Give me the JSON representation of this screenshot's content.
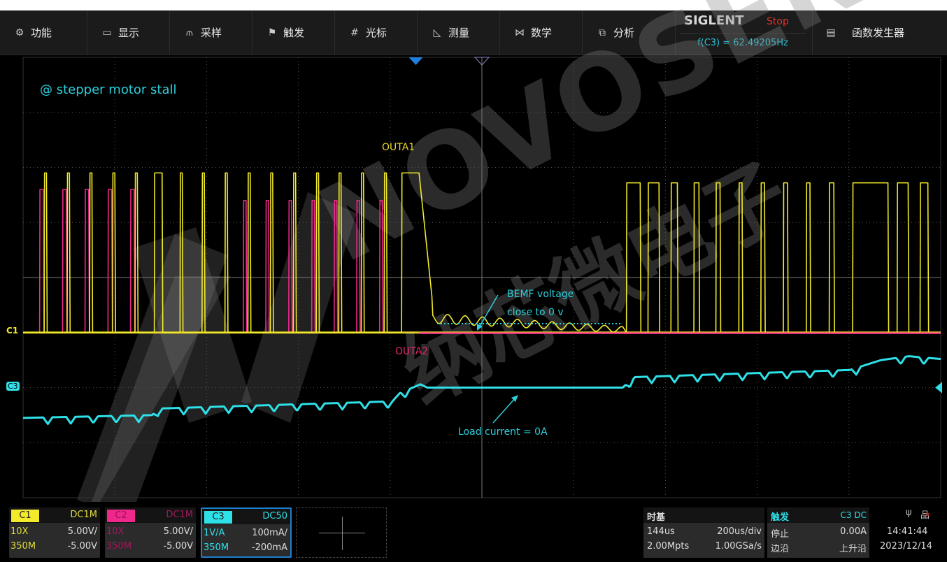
{
  "menu": [
    {
      "icon": "gear-icon",
      "glyph": "⚙",
      "label": "功能"
    },
    {
      "icon": "display-icon",
      "glyph": "▭",
      "label": "显示"
    },
    {
      "icon": "acquire-icon",
      "glyph": "⫙",
      "label": "采样"
    },
    {
      "icon": "flag-icon",
      "glyph": "⚑",
      "label": "触发"
    },
    {
      "icon": "cursor-icon",
      "glyph": "#",
      "label": "光标"
    },
    {
      "icon": "measure-icon",
      "glyph": "◺",
      "label": "测量"
    },
    {
      "icon": "math-icon",
      "glyph": "⋈",
      "label": "数学"
    },
    {
      "icon": "analysis-icon",
      "glyph": "⧉",
      "label": "分析"
    }
  ],
  "brand": {
    "logo": "SIGLENT",
    "run_state": "Stop",
    "frequency": "f(C3) = 62.49205Hz"
  },
  "awg": {
    "icon": "awg-icon",
    "glyph": "▤",
    "label": "函数发生器"
  },
  "colors": {
    "c1": "#f2ea2a",
    "c2": "#f0288c",
    "c3": "#2ee0e8",
    "annotation": "#2bd0dc",
    "grid": "#555555",
    "stop": "#e0302a"
  },
  "annotations": {
    "title": "@ stepper motor stall",
    "outa1": "OUTA1",
    "outa2": "OUTA2",
    "bemf_line1": "BEMF voltage",
    "bemf_line2": "close to 0 v",
    "load": "Load current = 0A"
  },
  "markers": {
    "c1": "C1",
    "c3": "C3"
  },
  "watermark": {
    "text": "NOVOSENSE",
    "cn": "纳芯微电子"
  },
  "channels": [
    {
      "tag": "C1",
      "coupling": "DC1M",
      "probe": "10X",
      "scale": "5.00V/",
      "bw": "350M",
      "offset": "-5.00V"
    },
    {
      "tag": "C2",
      "coupling": "DC1M",
      "probe": "10X",
      "scale": "5.00V/",
      "bw": "350M",
      "offset": "-5.00V"
    },
    {
      "tag": "C3",
      "coupling": "DC50",
      "probe": "1V/A",
      "scale": "100mA/",
      "bw": "350M",
      "offset": "-200mA"
    }
  ],
  "timebase": {
    "title": "时基",
    "delay": "144us",
    "scale": "200us/div",
    "memory": "2.00Mpts",
    "rate": "1.00GSa/s"
  },
  "trigger": {
    "title": "触发",
    "source": "C3 DC",
    "state": "停止",
    "level": "0.00A",
    "type": "边沿",
    "slope": "上升沿"
  },
  "status": {
    "time": "14:41:44",
    "date": "2023/12/14",
    "usb_icon": "usb-icon",
    "network_icon": "network-disconnected-icon"
  },
  "chart_data": {
    "type": "line",
    "time_per_div_us": 200,
    "trigger_delay_us": 144,
    "x_range_us": [
      -856,
      1144
    ],
    "series": [
      {
        "name": "OUTA1",
        "channel": "C1",
        "volts_per_div": 5,
        "offset_v": -5,
        "pulses_us_v": [
          [
            -810,
            -805,
            14.5
          ],
          [
            -760,
            -755,
            14.5
          ],
          [
            -711,
            -706,
            14.5
          ],
          [
            -661,
            -656,
            14.5
          ],
          [
            -612,
            -607,
            14.5
          ],
          [
            -570,
            -553,
            14.5
          ],
          [
            -514,
            -509,
            14.5
          ],
          [
            -466,
            -461,
            14.5
          ],
          [
            -416,
            -411,
            14.5
          ],
          [
            -366,
            -361,
            14.5
          ],
          [
            -317,
            -312,
            14.5
          ],
          [
            -267,
            -262,
            14.5
          ],
          [
            -217,
            -212,
            14.5
          ],
          [
            -168,
            -163,
            14.5
          ],
          [
            -119,
            -114,
            14.5
          ],
          [
            -69,
            -64,
            14.5
          ],
          [
            -31,
            7,
            14.5
          ],
          [
            459,
            489,
            13.6
          ],
          [
            506,
            530,
            13.6
          ],
          [
            556,
            570,
            13.6
          ],
          [
            606,
            617,
            13.6
          ],
          [
            654,
            663,
            13.6
          ],
          [
            704,
            711,
            13.6
          ],
          [
            752,
            760,
            13.6
          ],
          [
            801,
            810,
            13.6
          ],
          [
            851,
            859,
            13.6
          ],
          [
            901,
            911,
            13.6
          ],
          [
            952,
            1029,
            13.6
          ],
          [
            1049,
            1073,
            13.6
          ],
          [
            1099,
            1116,
            13.6
          ]
        ],
        "bemf_ringing": {
          "start_us": 22,
          "end_us": 451,
          "start_v": 2.5,
          "period_us": 38,
          "amplitude_v": 0.9
        }
      },
      {
        "name": "OUTA2",
        "channel": "C2",
        "volts_per_div": 5,
        "offset_v": -5,
        "pulses_us_v": [
          [
            -820,
            -812,
            13
          ],
          [
            -770,
            -762,
            13
          ],
          [
            -721,
            -713,
            13
          ],
          [
            -671,
            -663,
            13
          ],
          [
            -622,
            -614,
            13
          ],
          [
            -376,
            -370,
            12
          ],
          [
            -327,
            -321,
            12
          ],
          [
            -277,
            -271,
            12
          ],
          [
            -227,
            -221,
            12
          ],
          [
            -178,
            -172,
            12
          ],
          [
            -129,
            -123,
            12
          ],
          [
            -79,
            -73,
            12
          ]
        ]
      },
      {
        "name": "Load current",
        "channel": "C3",
        "ma_per_div": 100,
        "offset_ma": -200,
        "points_us_ma": [
          [
            -852,
            -55
          ],
          [
            -575,
            -50
          ],
          [
            -560,
            -38
          ],
          [
            -51,
            -25
          ],
          [
            -35,
            -10
          ],
          [
            10,
            6
          ],
          [
            25,
            0
          ],
          [
            451,
            0
          ],
          [
            474,
            19
          ],
          [
            946,
            32
          ],
          [
            1014,
            50
          ],
          [
            1075,
            57
          ],
          [
            1143,
            52
          ]
        ],
        "ripple_ma": -12
      }
    ]
  }
}
